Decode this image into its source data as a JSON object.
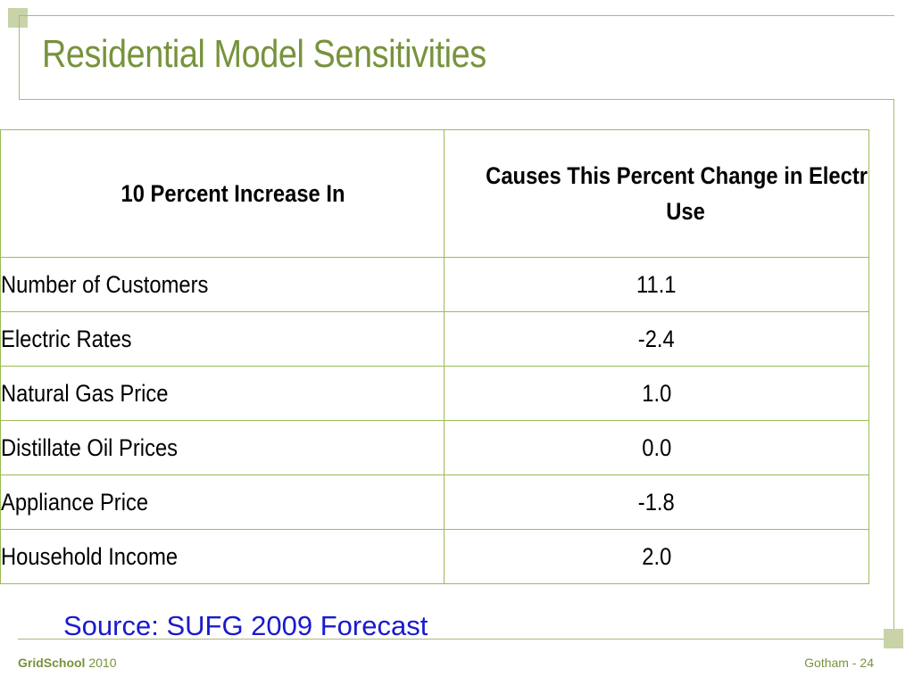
{
  "title": "Residential Model Sensitivities",
  "table": {
    "headers": [
      "10 Percent Increase In",
      "Causes This Percent Change in Electric Use"
    ],
    "rows": [
      {
        "label": "Number of Customers",
        "value": "11.1"
      },
      {
        "label": "Electric Rates",
        "value": "-2.4"
      },
      {
        "label": "Natural Gas Price",
        "value": "1.0"
      },
      {
        "label": "Distillate Oil Prices",
        "value": "0.0"
      },
      {
        "label": "Appliance Price",
        "value": "-1.8"
      },
      {
        "label": "Household Income",
        "value": "2.0"
      }
    ]
  },
  "source": "Source: SUFG 2009 Forecast",
  "footer": {
    "brand": "GridSchool",
    "year": "2010",
    "page": "Gotham - 24"
  },
  "colors": {
    "accent_green": "#77933c",
    "table_border": "#9bbb59",
    "source_blue": "#1a1acc"
  }
}
